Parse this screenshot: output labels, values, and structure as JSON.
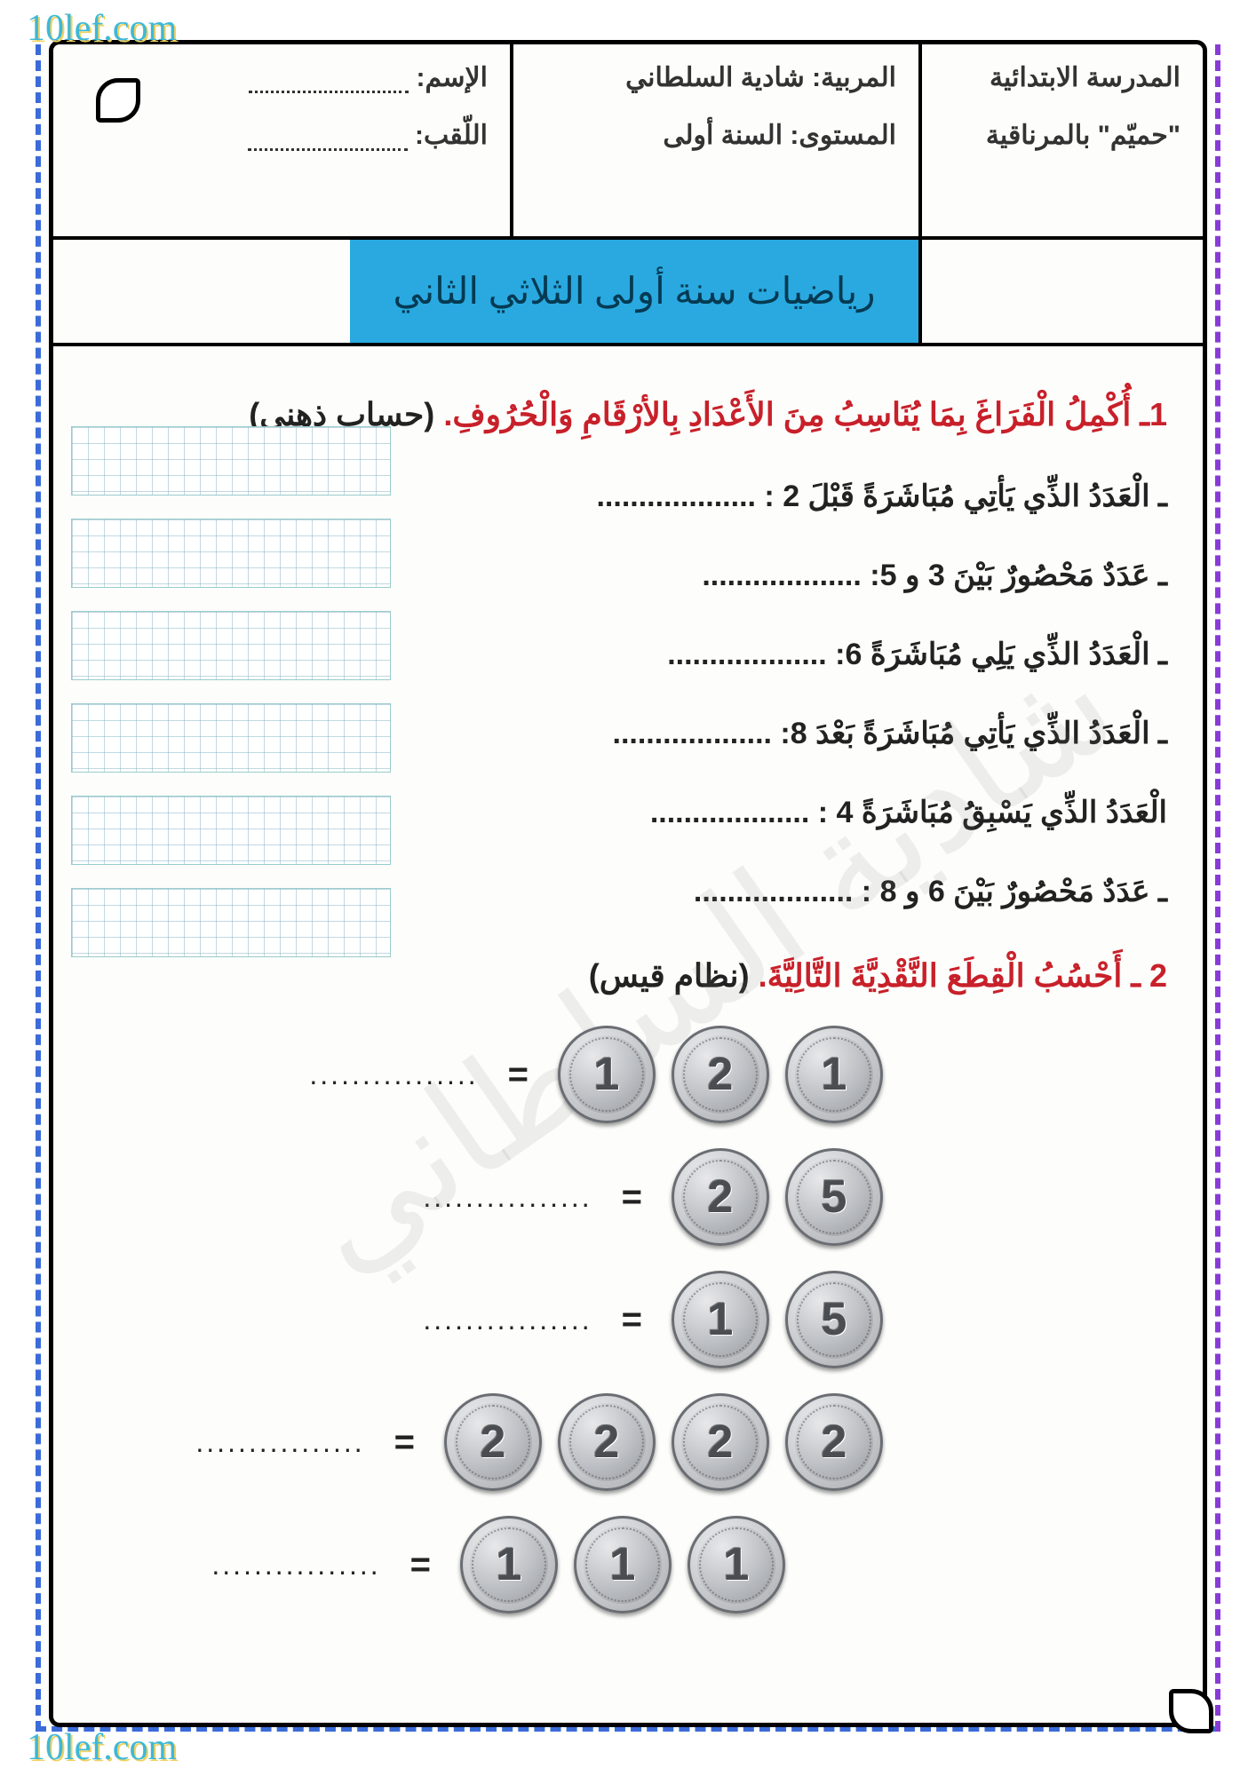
{
  "site_watermark": "10lef.com",
  "header": {
    "school_line1": "المدرسة الابتدائية",
    "school_line2": "\"حميّم\" بالمرناقية",
    "teacher_label": "المربية:",
    "teacher_name": "شادية السلطاني",
    "level_label": "المستوى:",
    "level_value": "السنة أولى",
    "name_label": "الإسم:",
    "surname_label": "اللّقب:"
  },
  "title": "رياضيات سنة أولى الثلاثي الثاني",
  "q1": {
    "number": "1ـ",
    "text_red": "أُكْمِلُ الْفَرَاغَ بِمَا يُنَاسِبُ مِنَ الأَعْدَادِ بِالأرْقَامِ وَالْحُرُوفِ.",
    "note": "(حساب ذهني)",
    "items": [
      "ـ الْعَدَدُ الذِّي يَأتِي مُبَاشَرَةً قَبْلَ 2 : ...................",
      "ـ عَدَدٌ مَحْصُورٌ بَيْنَ 3 و 5: ...................",
      "ـ الْعَدَدُ الذِّي يَلِي مُبَاشَرَةً 6: ...................",
      "ـ الْعَدَدُ الذِّي يَأتِي مُبَاشَرَةً بَعْدَ 8: ...................",
      "الْعَدَدُ الذِّي يَسْبِقُ مُبَاشَرَةً 4 : ...................",
      "ـ عَدَدٌ مَحْصُورٌ بَيْنَ 6 و 8 : ..................."
    ]
  },
  "q2": {
    "number": "2 ـ",
    "text_red": "أَحْسُبُ الْقِطَعَ النَّقْدِيَّةَ التَّالِيَّةَ.",
    "note": "(نظام قيس)",
    "rows": [
      {
        "coins": [
          "1",
          "2",
          "1"
        ]
      },
      {
        "coins": [
          "5",
          "2"
        ]
      },
      {
        "coins": [
          "5",
          "1"
        ]
      },
      {
        "coins": [
          "2",
          "2",
          "2",
          "2"
        ]
      },
      {
        "coins": [
          "1",
          "1",
          "1"
        ],
        "indent": true
      }
    ],
    "equals": "=",
    "dots": "................"
  },
  "grid_count": 6,
  "background_watermark": "شادية السلطاني",
  "colors": {
    "border_dash_blue": "#3a6bd8",
    "border_dash_purple": "#8a3ad8",
    "title_bg": "#29a9e0",
    "title_text": "#053a52",
    "q_red": "#c8202a",
    "wm_cyan": "#3db8d8"
  }
}
